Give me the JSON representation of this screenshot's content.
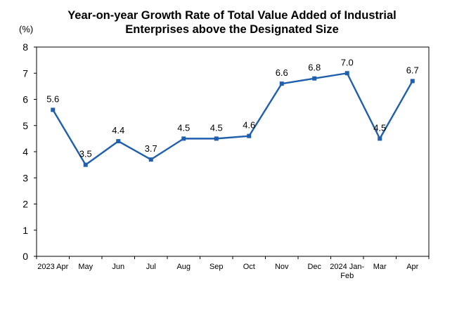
{
  "chart_data": {
    "type": "line",
    "title_line_1": "Year-on-year Growth Rate of Total Value Added of Industrial",
    "title_line_2": "Enterprises above the Designated Size",
    "ylabel": "(%)",
    "ylim": [
      0,
      8
    ],
    "yticks": [
      "0",
      "1",
      "2",
      "3",
      "4",
      "5",
      "6",
      "7",
      "8"
    ],
    "categories": [
      [
        "2023 Apr"
      ],
      [
        "May"
      ],
      [
        "Jun"
      ],
      [
        "Jul"
      ],
      [
        "Aug"
      ],
      [
        "Sep"
      ],
      [
        "Oct"
      ],
      [
        "Nov"
      ],
      [
        "Dec"
      ],
      [
        "2024 Jan-",
        "Feb"
      ],
      [
        "Mar"
      ],
      [
        "Apr"
      ]
    ],
    "values": [
      5.6,
      3.5,
      4.4,
      3.7,
      4.5,
      4.5,
      4.6,
      6.6,
      6.8,
      7.0,
      4.5,
      6.7
    ],
    "value_labels": [
      "5.6",
      "3.5",
      "4.4",
      "3.7",
      "4.5",
      "4.5",
      "4.6",
      "6.6",
      "6.8",
      "7.0",
      "4.5",
      "6.7"
    ],
    "line_color": "#1f5fae",
    "grid": false,
    "legend": "none"
  }
}
